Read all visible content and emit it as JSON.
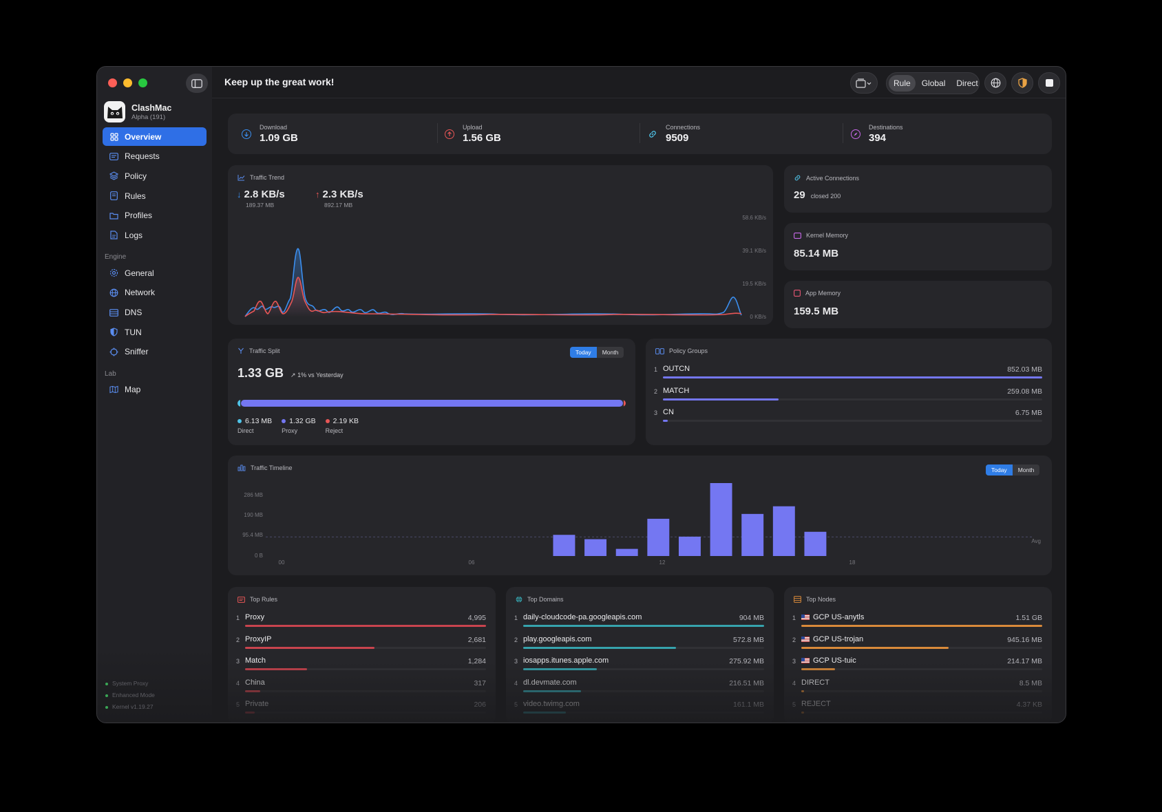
{
  "window": {
    "greeting": "Keep up the great work!",
    "modes": [
      "Rule",
      "Global",
      "Direct"
    ],
    "active_mode": "Rule"
  },
  "app": {
    "name": "ClashMac",
    "version": "Alpha (191)"
  },
  "sidebar": {
    "items": [
      {
        "label": "Overview",
        "icon": "grid-icon"
      },
      {
        "label": "Requests",
        "icon": "list-window-icon"
      },
      {
        "label": "Policy",
        "icon": "layers-icon"
      },
      {
        "label": "Rules",
        "icon": "document-icon"
      },
      {
        "label": "Profiles",
        "icon": "folder-icon"
      },
      {
        "label": "Logs",
        "icon": "log-icon"
      }
    ],
    "engine_title": "Engine",
    "engine_items": [
      {
        "label": "General",
        "icon": "gear-icon"
      },
      {
        "label": "Network",
        "icon": "globe-icon"
      },
      {
        "label": "DNS",
        "icon": "server-icon"
      },
      {
        "label": "TUN",
        "icon": "shield-icon"
      },
      {
        "label": "Sniffer",
        "icon": "sniffer-icon"
      }
    ],
    "lab_title": "Lab",
    "lab_items": [
      {
        "label": "Map",
        "icon": "map-icon"
      }
    ],
    "status": [
      "System Proxy",
      "Enhanced Mode",
      "Kernel v1.19.27"
    ]
  },
  "stats": {
    "download": {
      "label": "Download",
      "value": "1.09 GB"
    },
    "upload": {
      "label": "Upload",
      "value": "1.56 GB"
    },
    "connections": {
      "label": "Connections",
      "value": "9509"
    },
    "destinations": {
      "label": "Destinations",
      "value": "394"
    }
  },
  "traffic_trend": {
    "title": "Traffic Trend",
    "down_rate": "2.8 KB/s",
    "down_total": "189.37 MB",
    "up_rate": "2.3 KB/s",
    "up_total": "892.17 MB",
    "yticks": [
      "58.6 KB/s",
      "39.1 KB/s",
      "19.5 KB/s",
      "0 KB/s"
    ]
  },
  "active_connections": {
    "title": "Active Connections",
    "value": "29",
    "sub": "closed 200"
  },
  "kernel_memory": {
    "title": "Kernel Memory",
    "value": "85.14 MB"
  },
  "app_memory": {
    "title": "App Memory",
    "value": "159.5 MB"
  },
  "traffic_split": {
    "title": "Traffic Split",
    "total": "1.33 GB",
    "compare": "1% vs Yesterday",
    "tabs": [
      "Today",
      "Month"
    ],
    "legend": [
      {
        "value": "6.13 MB",
        "label": "Direct",
        "color": "#4fc3e8"
      },
      {
        "value": "1.32 GB",
        "label": "Proxy",
        "color": "#7477f2"
      },
      {
        "value": "2.19 KB",
        "label": "Reject",
        "color": "#e85656"
      }
    ]
  },
  "policy_groups": {
    "title": "Policy Groups",
    "items": [
      {
        "rank": "1",
        "name": "OUTCN",
        "value": "852.03 MB",
        "fraction": 1.0
      },
      {
        "rank": "2",
        "name": "MATCH",
        "value": "259.08 MB",
        "fraction": 0.304
      },
      {
        "rank": "3",
        "name": "CN",
        "value": "6.75 MB",
        "fraction": 0.01
      }
    ]
  },
  "traffic_timeline": {
    "title": "Traffic Timeline",
    "tabs": [
      "Today",
      "Month"
    ],
    "yticks": [
      "286 MB",
      "190 MB",
      "95.4 MB",
      "0 B"
    ],
    "xticks": [
      "00",
      "06",
      "12",
      "18"
    ],
    "avg_label": "Avg"
  },
  "chart_data": {
    "type": "bar",
    "title": "Traffic Timeline",
    "x": [
      0,
      1,
      2,
      3,
      4,
      5,
      6,
      7,
      8,
      9,
      10,
      11,
      12,
      13,
      14,
      15,
      16,
      17,
      18,
      19,
      20,
      21,
      22,
      23
    ],
    "values_mb": [
      0,
      0,
      0,
      0,
      0,
      0,
      0,
      0,
      0,
      83,
      66,
      28,
      146,
      76,
      286,
      165,
      195,
      95,
      0,
      0,
      0,
      0,
      0,
      0
    ],
    "ylim": [
      0,
      286
    ],
    "avg_mb": 75
  },
  "top_rules": {
    "title": "Top Rules",
    "items": [
      {
        "rank": "1",
        "name": "Proxy",
        "value": "4,995",
        "fraction": 1.0
      },
      {
        "rank": "2",
        "name": "ProxyIP",
        "value": "2,681",
        "fraction": 0.537
      },
      {
        "rank": "3",
        "name": "Match",
        "value": "1,284",
        "fraction": 0.257
      },
      {
        "rank": "4",
        "name": "China",
        "value": "317",
        "fraction": 0.063
      },
      {
        "rank": "5",
        "name": "Private",
        "value": "206",
        "fraction": 0.041
      }
    ]
  },
  "top_domains": {
    "title": "Top Domains",
    "items": [
      {
        "rank": "1",
        "name": "daily-cloudcode-pa.googleapis.com",
        "value": "904 MB",
        "fraction": 1.0
      },
      {
        "rank": "2",
        "name": "play.googleapis.com",
        "value": "572.8 MB",
        "fraction": 0.634
      },
      {
        "rank": "3",
        "name": "iosapps.itunes.apple.com",
        "value": "275.92 MB",
        "fraction": 0.305
      },
      {
        "rank": "4",
        "name": "dl.devmate.com",
        "value": "216.51 MB",
        "fraction": 0.24
      },
      {
        "rank": "5",
        "name": "video.twimg.com",
        "value": "161.1 MB",
        "fraction": 0.178
      }
    ]
  },
  "top_nodes": {
    "title": "Top Nodes",
    "items": [
      {
        "rank": "1",
        "name": "GCP US-anytls",
        "value": "1.51 GB",
        "fraction": 1.0,
        "flag": true
      },
      {
        "rank": "2",
        "name": "GCP US-trojan",
        "value": "945.16 MB",
        "fraction": 0.611,
        "flag": true
      },
      {
        "rank": "3",
        "name": "GCP US-tuic",
        "value": "214.17 MB",
        "fraction": 0.139,
        "flag": true
      },
      {
        "rank": "4",
        "name": "DIRECT",
        "value": "8.5 MB",
        "fraction": 0.006,
        "flag": false
      },
      {
        "rank": "5",
        "name": "REJECT",
        "value": "4.37 KB",
        "fraction": 0.003,
        "flag": false
      }
    ]
  },
  "colors": {
    "accent": "#2f6fe6",
    "download": "#3b8ff0",
    "upload": "#e85656",
    "bar": "#7477f2",
    "rules": "#c9444e",
    "domains": "#36a3ad",
    "nodes": "#d98a3a"
  }
}
